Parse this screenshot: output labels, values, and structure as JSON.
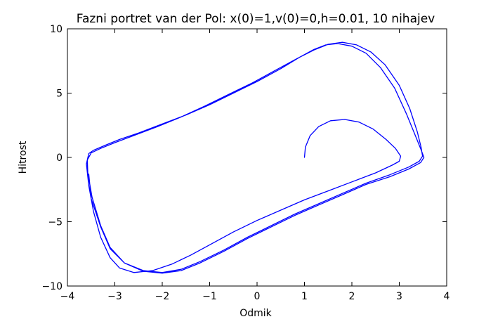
{
  "chart_data": {
    "type": "line",
    "title": "Fazni portret van der Pol: x(0)=1,v(0)=0,h=0.01, 10 nihajev",
    "xlabel": "Odmik",
    "ylabel": "Hitrost",
    "xlim": [
      -4,
      4
    ],
    "ylim": [
      -10,
      10
    ],
    "xticks": [
      -4,
      -3,
      -2,
      -1,
      0,
      1,
      2,
      3,
      4
    ],
    "xtick_labels": [
      "−4",
      "−3",
      "−2",
      "−1",
      "0",
      "1",
      "2",
      "3",
      "4"
    ],
    "yticks": [
      -10,
      -5,
      0,
      5,
      10
    ],
    "ytick_labels": [
      "−10",
      "−5",
      "0",
      "5",
      "10"
    ],
    "grid": false,
    "line_color": "#0000ff",
    "series": [
      {
        "x": [
          1.0,
          1.02,
          1.12,
          1.3,
          1.55,
          1.85,
          2.15,
          2.45,
          2.72,
          2.92,
          3.03,
          3.0,
          2.85,
          2.5,
          2.0,
          1.5,
          1.0,
          0.5,
          0.0,
          -0.5,
          -1.0,
          -1.4,
          -1.8,
          -2.2,
          -2.6,
          -2.9,
          -3.1,
          -3.3,
          -3.45,
          -3.55,
          -3.6,
          -3.55,
          -3.45,
          -3.2,
          -2.9,
          -2.5,
          -2.0,
          -1.5,
          -1.0,
          -0.5,
          0.0,
          0.5,
          0.9,
          1.2,
          1.45,
          1.7,
          2.0,
          2.3,
          2.6,
          2.9,
          3.15,
          3.35,
          3.47,
          3.52,
          3.45,
          3.2,
          2.8,
          2.3,
          1.8,
          1.3,
          0.8,
          0.3,
          -0.2,
          -0.7,
          -1.2,
          -1.6,
          -2.0,
          -2.4,
          -2.8,
          -3.1,
          -3.3,
          -3.48,
          -3.57,
          -3.58,
          -3.5,
          -3.3,
          -3.0,
          -2.6,
          -2.1,
          -1.6,
          -1.1,
          -0.6,
          -0.1,
          0.4,
          0.85,
          1.2,
          1.5,
          1.8,
          2.1,
          2.4,
          2.7,
          3.0,
          3.22,
          3.38,
          3.46,
          3.49,
          3.42,
          3.2,
          2.8,
          2.3,
          1.8,
          1.3,
          0.8,
          0.3,
          -0.2,
          -0.7,
          -1.2,
          -1.6,
          -2.0,
          -2.4,
          -2.8,
          -3.1,
          -3.3,
          -3.5,
          -3.55
        ],
        "y": [
          0.0,
          0.8,
          1.7,
          2.4,
          2.85,
          2.95,
          2.75,
          2.2,
          1.4,
          0.7,
          0.1,
          -0.3,
          -0.6,
          -1.2,
          -1.9,
          -2.6,
          -3.3,
          -4.1,
          -4.9,
          -5.8,
          -6.8,
          -7.6,
          -8.3,
          -8.8,
          -8.95,
          -8.6,
          -7.8,
          -6.2,
          -4.2,
          -2.2,
          -0.5,
          0.3,
          0.55,
          0.95,
          1.4,
          1.9,
          2.6,
          3.3,
          4.1,
          5.0,
          5.9,
          6.9,
          7.8,
          8.4,
          8.75,
          8.85,
          8.65,
          8.1,
          7.0,
          5.4,
          3.4,
          1.6,
          0.5,
          0.0,
          -0.4,
          -0.9,
          -1.5,
          -2.1,
          -2.9,
          -3.7,
          -4.5,
          -5.4,
          -6.3,
          -7.3,
          -8.2,
          -8.8,
          -9.0,
          -8.85,
          -8.2,
          -7.0,
          -5.3,
          -3.1,
          -1.2,
          -0.2,
          0.35,
          0.7,
          1.15,
          1.7,
          2.4,
          3.15,
          4.0,
          4.9,
          5.8,
          6.8,
          7.7,
          8.35,
          8.8,
          8.95,
          8.75,
          8.2,
          7.2,
          5.6,
          3.8,
          2.0,
          0.8,
          0.1,
          -0.3,
          -0.75,
          -1.35,
          -2.0,
          -2.8,
          -3.6,
          -4.4,
          -5.3,
          -6.2,
          -7.2,
          -8.1,
          -8.7,
          -8.95,
          -8.8,
          -8.2,
          -7.1,
          -5.4,
          -3.2,
          -1.3
        ]
      }
    ]
  }
}
